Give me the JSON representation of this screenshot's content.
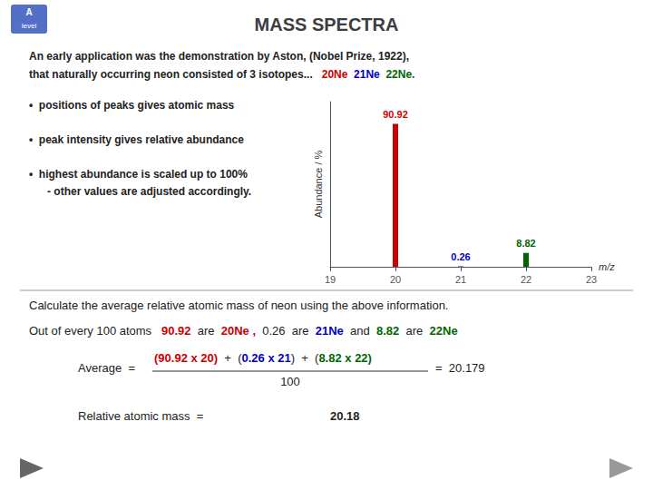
{
  "chart_data": {
    "type": "bar",
    "title": "MASS SPECTRA",
    "x": [
      20,
      21,
      22
    ],
    "values": [
      90.92,
      0.26,
      8.82
    ],
    "colors": [
      "#cc0000",
      "#0000cc",
      "#006600"
    ],
    "data_labels": true,
    "xlim": [
      19,
      23
    ],
    "xticks": [
      19,
      20,
      21,
      22,
      23
    ],
    "ylim": [
      0,
      105
    ],
    "tick_labels": "x",
    "grid": false,
    "xlabel": "m/z",
    "ylabel": "Abundance / %",
    "annotations": [
      [
        {
          "text": "An early application was the demonstration by Aston, (Nobel Prize, 1922),"
        }
      ],
      [
        {
          "text": "that naturally occurring neon consisted of 3 isotopes...   "
        },
        {
          "text": "20",
          "color": "#cc0000"
        },
        {
          "text": "Ne  ",
          "color": "#cc0000"
        },
        {
          "text": "21",
          "color": "#0000cc"
        },
        {
          "text": "Ne  ",
          "color": "#0000cc"
        },
        {
          "text": "22",
          "color": "#006600"
        },
        {
          "text": "Ne.",
          "color": "#006600"
        }
      ],
      [
        {
          "text": "•  positions of peaks gives atomic mass"
        }
      ],
      [
        {
          "text": "•  peak intensity gives relative abundance"
        }
      ],
      [
        {
          "text": "•  highest abundance is scaled up to 100%"
        }
      ],
      [
        {
          "text": "- other values are adjusted accordingly."
        }
      ],
      [
        {
          "text": "Calculate the average relative atomic mass of neon using the above information."
        }
      ],
      [
        {
          "text": "Out of every 100 atoms   "
        },
        {
          "text": "90.92",
          "color": "#cc0000"
        },
        {
          "text": "  are  "
        },
        {
          "text": "20",
          "color": "#cc0000"
        },
        {
          "text": "Ne ,",
          "color": "#cc0000"
        },
        {
          "text": "  0.26  are  "
        },
        {
          "text": "21",
          "color": "#0000cc"
        },
        {
          "text": "Ne",
          "color": "#0000cc"
        },
        {
          "text": "  and  "
        },
        {
          "text": "8.82",
          "color": "#006600"
        },
        {
          "text": "  are  "
        },
        {
          "text": "22",
          "color": "#006600"
        },
        {
          "text": "Ne",
          "color": "#006600"
        }
      ],
      [
        {
          "text": "Average  ="
        }
      ],
      [
        {
          "text": "(90.92 x 20)",
          "color": "#cc0000"
        },
        {
          "text": "  +  ("
        },
        {
          "text": "0.26 x 21",
          "color": "#0000cc"
        },
        {
          "text": ")  +  ("
        },
        {
          "text": "8.82 x 22",
          "color": "#006600"
        },
        {
          "text": ")",
          "color": "#006600"
        }
      ],
      [
        {
          "text": "=  20.179"
        }
      ],
      [
        {
          "text": "100"
        }
      ],
      [
        {
          "text": "Relative atomic mass  ="
        }
      ],
      [
        {
          "text": "20.18"
        }
      ],
      [
        {
          "text": "A"
        }
      ],
      [
        {
          "text": "level"
        }
      ]
    ]
  }
}
